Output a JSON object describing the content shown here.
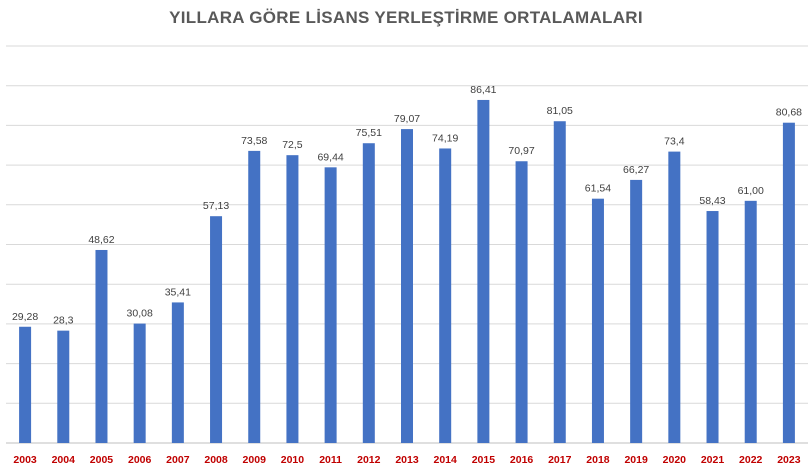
{
  "chart_data": {
    "type": "bar",
    "title": "YILLARA GÖRE LİSANS YERLEŞTİRME ORTALAMALARI",
    "xlabel": "",
    "ylabel": "",
    "ylim": [
      0,
      100
    ],
    "grid": true,
    "categories": [
      "2003",
      "2004",
      "2005",
      "2006",
      "2007",
      "2008",
      "2009",
      "2010",
      "2011",
      "2012",
      "2013",
      "2014",
      "2015",
      "2016",
      "2017",
      "2018",
      "2019",
      "2020",
      "2021",
      "2022",
      "2023"
    ],
    "values": [
      29.28,
      28.3,
      48.62,
      30.08,
      35.41,
      57.13,
      73.58,
      72.5,
      69.44,
      75.51,
      79.07,
      74.19,
      86.41,
      70.97,
      81.05,
      61.54,
      66.27,
      73.4,
      58.43,
      61.0,
      80.68
    ],
    "data_labels": [
      "29,28",
      "28,3",
      "48,62",
      "30,08",
      "35,41",
      "57,13",
      "73,58",
      "72,5",
      "69,44",
      "75,51",
      "79,07",
      "74,19",
      "86,41",
      "70,97",
      "81,05",
      "61,54",
      "66,27",
      "73,4",
      "58,43",
      "61,00",
      "80,68"
    ],
    "colors": {
      "bar": "#4472C4",
      "tick_label": "#C00000",
      "value_label": "#404040",
      "grid": "#D9D9D9"
    }
  }
}
